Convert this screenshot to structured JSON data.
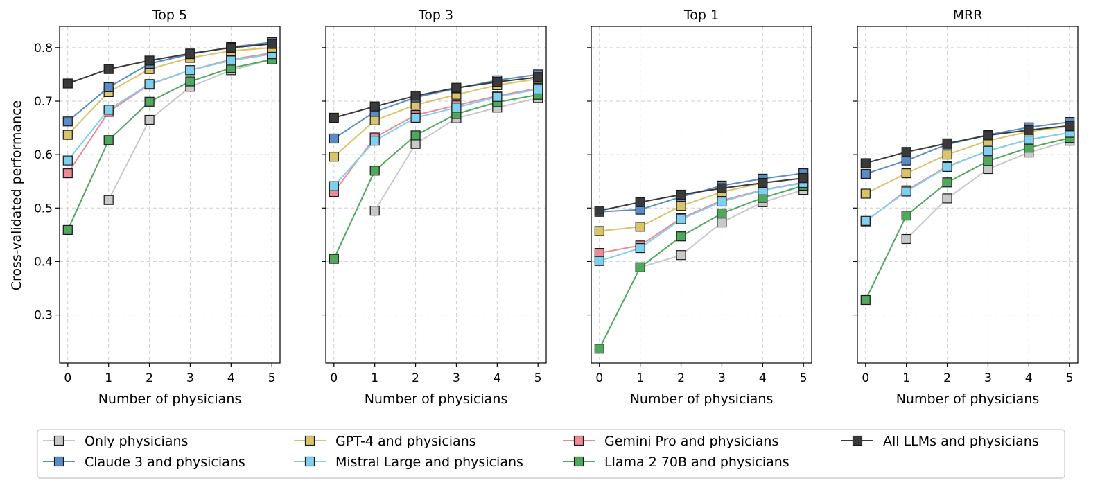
{
  "chart_data": {
    "type": "line",
    "ylabel": "Cross-validated performance",
    "xlabel": "Number of physicians",
    "x": [
      0,
      1,
      2,
      3,
      4,
      5
    ],
    "y_ticks": [
      0.3,
      0.4,
      0.5,
      0.6,
      0.7,
      0.8
    ],
    "ylim": [
      0.21,
      0.84
    ],
    "xlim": [
      -0.2,
      5.2
    ],
    "grid": true,
    "legend_position": "bottom",
    "legend": [
      {
        "key": "only",
        "label": "Only physicians",
        "color": "#c8c8c8"
      },
      {
        "key": "claude",
        "label": "Claude 3 and physicians",
        "color": "#5b8cc8"
      },
      {
        "key": "gpt4",
        "label": "GPT-4 and physicians",
        "color": "#d9c46a"
      },
      {
        "key": "mistral",
        "label": "Mistral Large and physicians",
        "color": "#7fd0ee"
      },
      {
        "key": "gemini",
        "label": "Gemini Pro and physicians",
        "color": "#ee8a96"
      },
      {
        "key": "llama",
        "label": "Llama 2 70B and physicians",
        "color": "#4fa85c"
      },
      {
        "key": "all",
        "label": "All LLMs and physicians",
        "color": "#3a3a3a"
      }
    ],
    "panels": [
      {
        "title": "Top 5",
        "series": {
          "only": [
            null,
            0.515,
            0.665,
            0.727,
            0.758,
            0.778
          ],
          "llama": [
            0.459,
            0.627,
            0.699,
            0.737,
            0.762,
            0.778
          ],
          "gemini": [
            0.565,
            0.68,
            0.731,
            0.758,
            0.778,
            0.79
          ],
          "mistral": [
            0.589,
            0.684,
            0.732,
            0.758,
            0.776,
            0.788
          ],
          "gpt4": [
            0.637,
            0.717,
            0.76,
            0.781,
            0.794,
            0.8
          ],
          "claude": [
            0.662,
            0.726,
            0.77,
            0.788,
            0.801,
            0.81
          ],
          "all": [
            0.733,
            0.76,
            0.776,
            0.789,
            0.8,
            0.807
          ]
        }
      },
      {
        "title": "Top 3",
        "series": {
          "only": [
            null,
            0.495,
            0.62,
            0.668,
            0.688,
            0.706
          ],
          "llama": [
            0.405,
            0.57,
            0.636,
            0.676,
            0.698,
            0.712
          ],
          "gemini": [
            0.53,
            0.632,
            0.674,
            0.692,
            0.71,
            0.724
          ],
          "mistral": [
            0.541,
            0.626,
            0.669,
            0.688,
            0.708,
            0.722
          ],
          "gpt4": [
            0.596,
            0.664,
            0.693,
            0.712,
            0.73,
            0.742
          ],
          "claude": [
            0.63,
            0.68,
            0.707,
            0.724,
            0.739,
            0.75
          ],
          "all": [
            0.669,
            0.69,
            0.71,
            0.725,
            0.736,
            0.745
          ]
        }
      },
      {
        "title": "Top 1",
        "series": {
          "only": [
            null,
            0.389,
            0.412,
            0.473,
            0.511,
            0.534
          ],
          "llama": [
            0.237,
            0.389,
            0.447,
            0.49,
            0.519,
            0.542
          ],
          "gemini": [
            0.416,
            0.43,
            0.481,
            0.514,
            0.534,
            0.548
          ],
          "mistral": [
            0.401,
            0.425,
            0.479,
            0.512,
            0.533,
            0.547
          ],
          "gpt4": [
            0.457,
            0.465,
            0.504,
            0.53,
            0.547,
            0.556
          ],
          "claude": [
            0.493,
            0.497,
            0.521,
            0.542,
            0.555,
            0.565
          ],
          "all": [
            0.495,
            0.511,
            0.525,
            0.537,
            0.547,
            0.556
          ]
        }
      },
      {
        "title": "MRR",
        "series": {
          "only": [
            null,
            0.442,
            0.518,
            0.573,
            0.604,
            0.626
          ],
          "llama": [
            0.328,
            0.486,
            0.548,
            0.588,
            0.613,
            0.631
          ],
          "gemini": [
            0.475,
            0.533,
            0.578,
            0.607,
            0.628,
            0.641
          ],
          "mistral": [
            0.476,
            0.531,
            0.577,
            0.607,
            0.628,
            0.641
          ],
          "gpt4": [
            0.527,
            0.565,
            0.6,
            0.626,
            0.643,
            0.653
          ],
          "claude": [
            0.564,
            0.589,
            0.619,
            0.637,
            0.651,
            0.661
          ],
          "all": [
            0.584,
            0.605,
            0.621,
            0.636,
            0.646,
            0.654
          ]
        }
      }
    ]
  }
}
